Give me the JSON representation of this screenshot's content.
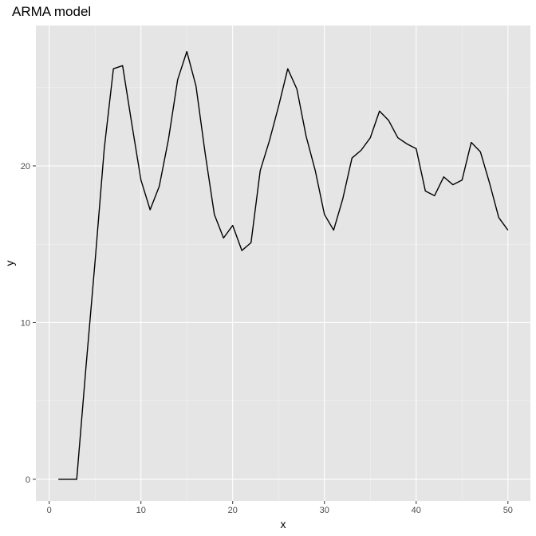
{
  "chart_data": {
    "type": "line",
    "title": "ARMA model",
    "xlabel": "x",
    "ylabel": "y",
    "xlim": [
      -1.45,
      52.45
    ],
    "ylim": [
      -1.38,
      28.96
    ],
    "x_ticks": [
      0,
      10,
      20,
      30,
      40,
      50
    ],
    "x_tick_labels": [
      "0",
      "10",
      "20",
      "30",
      "40",
      "50"
    ],
    "y_ticks": [
      0,
      10,
      20
    ],
    "y_tick_labels": [
      "0",
      "10",
      "20"
    ],
    "x_minor_ticks": [
      5,
      15,
      25,
      35,
      45
    ],
    "y_minor_ticks": [
      5,
      15,
      25
    ],
    "grid": true,
    "legend": "none",
    "colors": {
      "panel_background": "#e5e5e5",
      "grid": "#ffffff",
      "line": "#000000",
      "tick_label": "#4d4d4d"
    },
    "x": [
      1,
      2,
      3,
      4,
      5,
      6,
      7,
      8,
      9,
      10,
      11,
      12,
      13,
      14,
      15,
      16,
      17,
      18,
      19,
      20,
      21,
      22,
      23,
      24,
      25,
      26,
      27,
      28,
      29,
      30,
      31,
      32,
      33,
      34,
      35,
      36,
      37,
      38,
      39,
      40,
      41,
      42,
      43,
      44,
      45,
      46,
      47,
      48,
      49,
      50
    ],
    "y": [
      0,
      0,
      0,
      7.1,
      13.9,
      21.1,
      26.2,
      26.4,
      22.7,
      19.1,
      17.2,
      18.7,
      21.7,
      25.5,
      27.3,
      25.1,
      20.8,
      16.9,
      15.4,
      16.2,
      14.6,
      15.1,
      19.7,
      21.6,
      23.8,
      26.2,
      24.9,
      21.9,
      19.7,
      16.9,
      15.9,
      17.9,
      20.5,
      21.0,
      21.8,
      23.5,
      22.9,
      21.8,
      21.4,
      21.1,
      18.4,
      18.1,
      19.3,
      18.8,
      19.1,
      21.5,
      20.9,
      18.9,
      16.7,
      15.9
    ]
  }
}
